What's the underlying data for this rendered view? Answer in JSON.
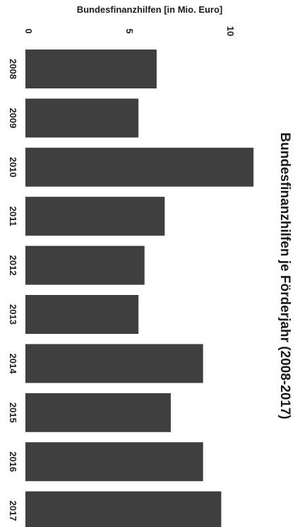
{
  "chart_data": {
    "type": "bar",
    "orientation": "rotated-90-clockwise",
    "title": "Bundesfinanzhilfen je Förderjahr (2008-2017)",
    "ylabel": "Bundesfinanzhilfen [in Mio. Euro]",
    "xlabel": "",
    "categories": [
      "2008",
      "2009",
      "2010",
      "2011",
      "2012",
      "2013",
      "2014",
      "2015",
      "2016",
      "2017"
    ],
    "values": [
      6.5,
      5.6,
      11.3,
      6.9,
      5.9,
      5.6,
      8.8,
      7.2,
      8.8,
      9.7
    ],
    "ylim": [
      0,
      11.6
    ],
    "yticks": [
      0,
      5,
      10
    ],
    "ytick_labels": [
      "0",
      "5",
      "10"
    ],
    "grid": false,
    "bar_color": "#3f3f3f"
  }
}
